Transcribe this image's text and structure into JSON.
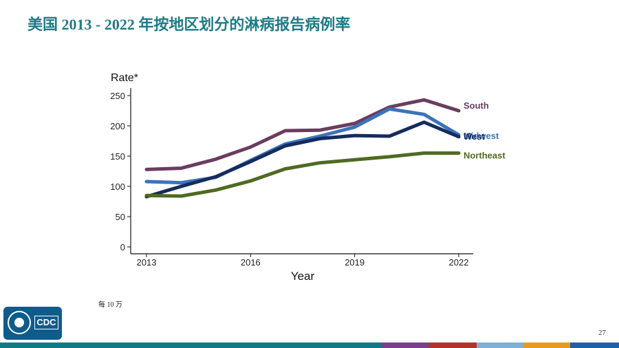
{
  "slide": {
    "title": "美国 2013 - 2022 年按地区划分的淋病报告病例率",
    "footnote": "每 10 万",
    "page_number": "27",
    "logo_text": "CDC"
  },
  "bottom_bar_colors": [
    "#0e7a86",
    "#7b3f8c",
    "#b5322a",
    "#7fb0d6",
    "#e89a1f",
    "#1d5fa8"
  ],
  "chart_data": {
    "type": "line",
    "ylabel": "Rate*",
    "xlabel": "Year",
    "x": [
      2013,
      2014,
      2015,
      2016,
      2017,
      2018,
      2019,
      2020,
      2021,
      2022
    ],
    "xticks": [
      "2013",
      "2016",
      "2019",
      "2022"
    ],
    "yticks": [
      "0",
      "50",
      "100",
      "150",
      "200",
      "250"
    ],
    "ylim": [
      0,
      260
    ],
    "xlim": [
      2013,
      2022
    ],
    "series": [
      {
        "name": "South",
        "color": "#6a3d5e",
        "values": [
          128,
          130,
          145,
          165,
          192,
          193,
          204,
          231,
          243,
          225
        ]
      },
      {
        "name": "Midwest",
        "color": "#3a74ba",
        "values": [
          108,
          106,
          115,
          143,
          170,
          183,
          198,
          228,
          219,
          185
        ]
      },
      {
        "name": "West",
        "color": "#152c5e",
        "values": [
          83,
          100,
          116,
          141,
          167,
          179,
          184,
          183,
          206,
          182
        ]
      },
      {
        "name": "Northeast",
        "color": "#4f6a22",
        "values": [
          85,
          84,
          94,
          109,
          129,
          139,
          144,
          149,
          155,
          155
        ]
      }
    ]
  }
}
